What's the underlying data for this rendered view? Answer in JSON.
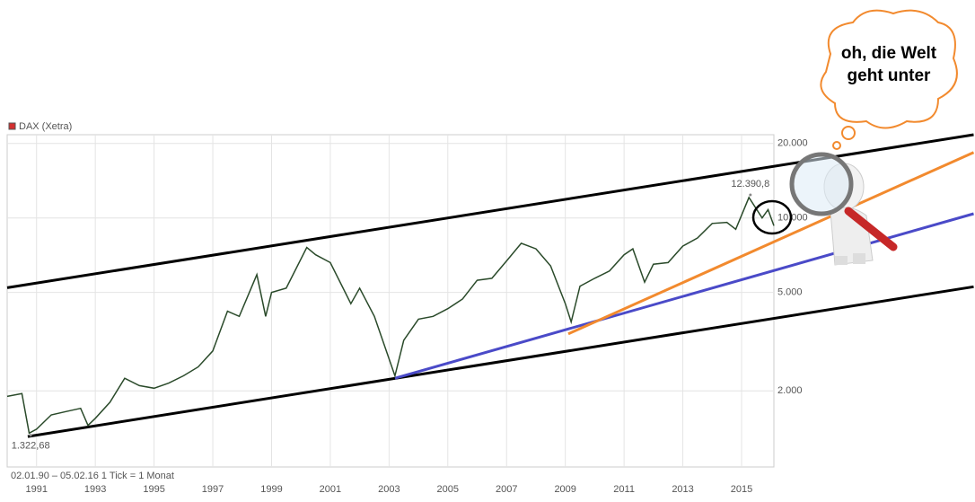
{
  "chart_data": {
    "type": "line",
    "legend": "DAX (Xetra)",
    "footnote": "02.01.90 – 05.02.16   1 Tick = 1 Monat",
    "speech": [
      "oh, die Welt",
      "geht unter"
    ],
    "log_scale": true,
    "grid": true,
    "xlim": [
      1990,
      2016.1
    ],
    "ylim": [
      985,
      21700
    ],
    "xticks": [
      1991,
      1993,
      1995,
      1997,
      1999,
      2001,
      2003,
      2005,
      2007,
      2009,
      2011,
      2013,
      2015
    ],
    "yticks": [
      {
        "value": 2000,
        "label": "2.000"
      },
      {
        "value": 5000,
        "label": "5.000"
      },
      {
        "value": 10000,
        "label": "10.000"
      },
      {
        "value": 20000,
        "label": "20.000"
      }
    ],
    "series": [
      {
        "name": "DAX (Xetra)",
        "color": "#d32f2f",
        "line_color": "#2a4a2a",
        "x": [
          1990.0,
          1990.5,
          1990.75,
          1991.0,
          1991.5,
          1992.0,
          1992.5,
          1992.75,
          1993.0,
          1993.5,
          1994.0,
          1994.5,
          1995.0,
          1995.5,
          1996.0,
          1996.5,
          1997.0,
          1997.5,
          1997.9,
          1998.5,
          1998.8,
          1999.0,
          1999.5,
          2000.2,
          2000.5,
          2001.0,
          2001.7,
          2002.0,
          2002.5,
          2003.2,
          2003.5,
          2004.0,
          2004.5,
          2005.0,
          2005.5,
          2006.0,
          2006.5,
          2007.0,
          2007.5,
          2008.0,
          2008.5,
          2009.0,
          2009.2,
          2009.5,
          2010.0,
          2010.5,
          2011.0,
          2011.3,
          2011.7,
          2012.0,
          2012.5,
          2013.0,
          2013.5,
          2014.0,
          2014.5,
          2014.8,
          2015.25,
          2015.7,
          2015.9,
          2016.1
        ],
        "values": [
          1900,
          1950,
          1350,
          1400,
          1600,
          1650,
          1700,
          1450,
          1550,
          1800,
          2250,
          2100,
          2050,
          2150,
          2300,
          2500,
          2900,
          4200,
          4000,
          5900,
          4000,
          5000,
          5200,
          7600,
          7100,
          6600,
          4500,
          5200,
          4000,
          2300,
          3200,
          3900,
          4000,
          4300,
          4700,
          5600,
          5700,
          6700,
          7900,
          7500,
          6400,
          4500,
          3800,
          5300,
          5700,
          6100,
          7100,
          7500,
          5500,
          6500,
          6600,
          7700,
          8300,
          9500,
          9600,
          9000,
          12100,
          10000,
          10800,
          9300
        ]
      }
    ],
    "annotations": [
      {
        "x": 2015.3,
        "value": 12390.8,
        "label": "12.390,8"
      },
      {
        "x": 1990.8,
        "value": 1322.68,
        "label": "1.322,68"
      }
    ],
    "trend_lines": [
      {
        "color": "#000000",
        "x": [
          1990.0,
          2022.9
        ],
        "values": [
          5225,
          21700
        ]
      },
      {
        "color": "#000000",
        "x": [
          1990.7,
          2022.9
        ],
        "values": [
          1308,
          5270
        ]
      },
      {
        "color": "#4a4ac8",
        "x": [
          2003.2,
          2022.9
        ],
        "values": [
          2250,
          10400
        ]
      },
      {
        "color": "#f28a2e",
        "x": [
          2009.1,
          2022.9
        ],
        "values": [
          3400,
          18400
        ]
      }
    ]
  }
}
